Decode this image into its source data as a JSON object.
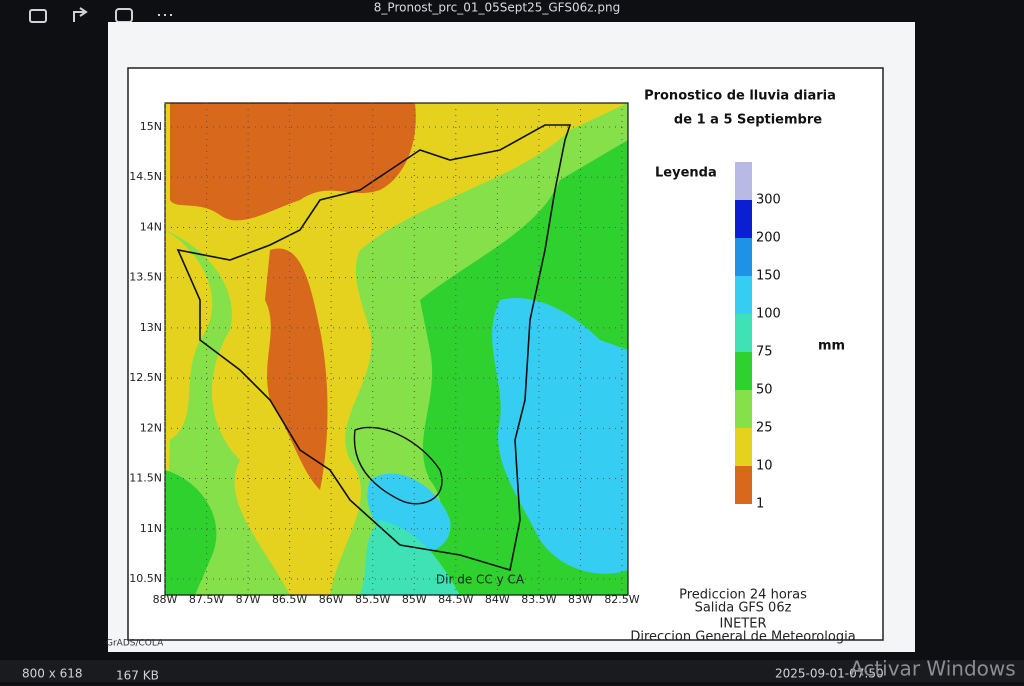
{
  "viewer": {
    "filename": "8_Pronost_prc_01_05Sept25_GFS06z.png",
    "dimensions": "800 x 618",
    "file_size": "167 KB",
    "timestamp": "2025-09-01-07:50",
    "watermark": "Activar Windows"
  },
  "map": {
    "title": [
      "Pronostico de lluvia diaria",
      "de 1 a 5 Septiembre"
    ],
    "legend_title": "Leyenda",
    "legend": [
      {
        "label": "300",
        "color": "#b9b9e6"
      },
      {
        "label": "200",
        "color": "#0a1ed2"
      },
      {
        "label": "150",
        "color": "#1d92e6"
      },
      {
        "label": "100",
        "color": "#36cdf2"
      },
      {
        "label": "75",
        "color": "#3ee2b4"
      },
      {
        "label": "50",
        "color": "#2fd12f"
      },
      {
        "label": "25",
        "color": "#86e04a"
      },
      {
        "label": "10",
        "color": "#e4d21e"
      },
      {
        "label": "1",
        "color": "#d7681c"
      }
    ],
    "unit": "mm",
    "lat_labels": [
      "15N",
      "14.5N",
      "14N",
      "13.5N",
      "13N",
      "12.5N",
      "12N",
      "11.5N",
      "11N",
      "10.5N"
    ],
    "lon_labels": [
      "88W",
      "87.5W",
      "87W",
      "86.5W",
      "86W",
      "85.5W",
      "85W",
      "84.5W",
      "84W",
      "83.5W",
      "83W",
      "82.5W"
    ],
    "credit": "Dir de CC y CA",
    "footer": [
      "Prediccion 24 horas",
      "Salida GFS 06z",
      "INETER",
      "Direccion General de Meteorologia"
    ],
    "software": "GrADS/COLA"
  }
}
